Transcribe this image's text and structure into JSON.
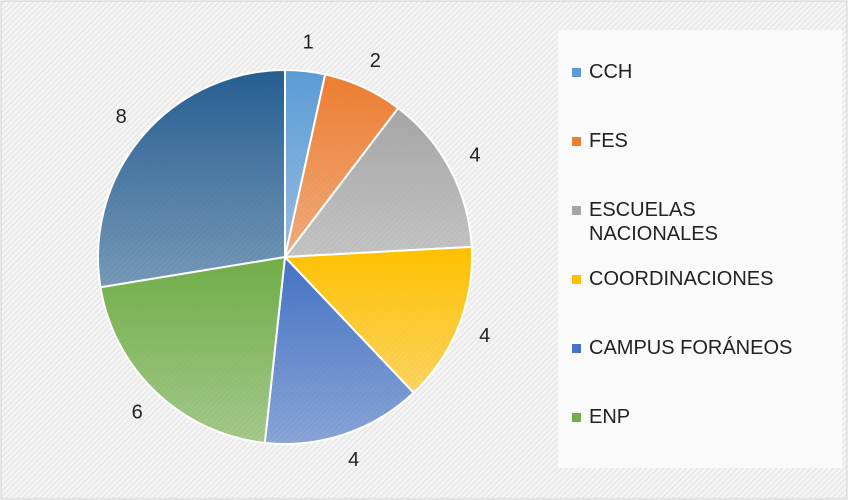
{
  "chart_data": {
    "type": "pie",
    "categories": [
      "CCH",
      "FES",
      "ESCUELAS NACIONALES",
      "COORDINACIONES",
      "CAMPUS FORÁNEOS",
      "ENP",
      null
    ],
    "values": [
      1,
      2,
      4,
      4,
      4,
      6,
      8
    ],
    "colors": [
      "#5b9bd5",
      "#ed7d31",
      "#a5a5a5",
      "#ffc000",
      "#4472c4",
      "#70ad47",
      "#255e91"
    ],
    "legend": "right"
  }
}
